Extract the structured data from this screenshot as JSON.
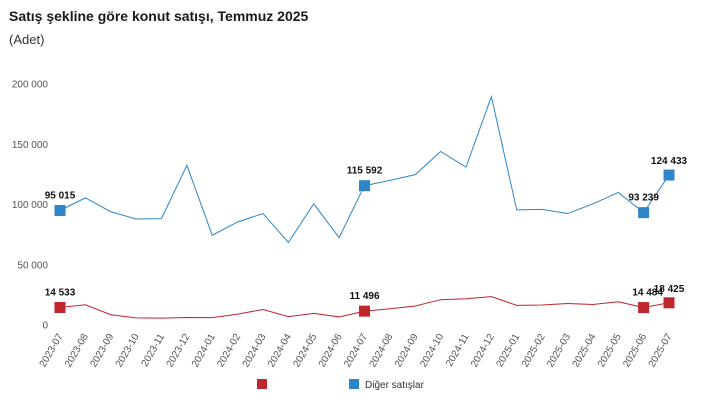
{
  "title": "Satış şekline göre konut satışı, Temmuz 2025",
  "subtitle": "(Adet)",
  "chart_data": {
    "type": "line",
    "categories": [
      "2023-07",
      "2023-08",
      "2023-09",
      "2023-10",
      "2023-11",
      "2023-12",
      "2024-01",
      "2024-02",
      "2024-03",
      "2024-04",
      "2024-05",
      "2024-06",
      "2024-07",
      "2024-08",
      "2024-09",
      "2024-10",
      "2024-11",
      "2024-12",
      "2025-01",
      "2025-02",
      "2025-03",
      "2025-04",
      "2025-05",
      "2025-06",
      "2025-07"
    ],
    "ylim": [
      0,
      200000
    ],
    "yticks": [
      0,
      50000,
      100000,
      150000,
      200000
    ],
    "ytick_labels": [
      "0",
      "50 000",
      "100 000",
      "150 000",
      "200 000"
    ],
    "series": [
      {
        "name": "",
        "color": "#c0262d",
        "values": [
          14533,
          16800,
          8500,
          5900,
          5700,
          6200,
          6100,
          9000,
          12900,
          7000,
          9600,
          6700,
          11496,
          13500,
          15800,
          21000,
          21800,
          23500,
          16300,
          16600,
          17800,
          17000,
          19300,
          14484,
          18425
        ],
        "markers": [
          {
            "index": 0,
            "label": "14 533"
          },
          {
            "index": 12,
            "label": "11 496"
          },
          {
            "index": 23,
            "label": "14 484"
          },
          {
            "index": 24,
            "label": "18 425"
          }
        ]
      },
      {
        "name": "Diğer satışlar",
        "color": "#2e86c8",
        "values": [
          95015,
          105500,
          94000,
          88000,
          88300,
          132500,
          74500,
          85500,
          92500,
          68500,
          100500,
          72500,
          115592,
          120000,
          124800,
          144000,
          131000,
          189500,
          95500,
          96000,
          92500,
          100500,
          110000,
          93239,
          124433
        ],
        "markers": [
          {
            "index": 0,
            "label": "95 015"
          },
          {
            "index": 12,
            "label": "115 592"
          },
          {
            "index": 23,
            "label": "93 239"
          },
          {
            "index": 24,
            "label": "124 433"
          }
        ]
      }
    ],
    "legend": [
      {
        "label": "",
        "color": "#c0262d"
      },
      {
        "label": "Diğer satışlar",
        "color": "#2e86c8"
      }
    ],
    "grid": false,
    "legend_position": "bottom"
  }
}
